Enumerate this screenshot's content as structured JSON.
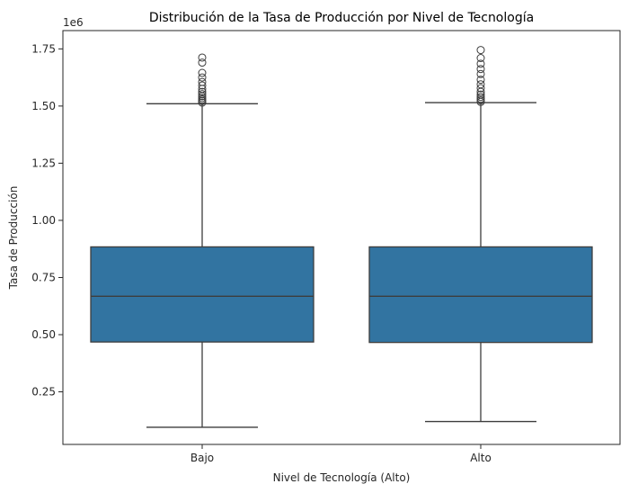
{
  "chart_data": {
    "type": "box",
    "title": "Distribución de la Tasa de Producción por Nivel de Tecnología",
    "xlabel": "Nivel de Tecnología (Alto)",
    "ylabel": "Tasa de Producción",
    "y_multiplier_label": "1e6",
    "categories": [
      "Bajo",
      "Alto"
    ],
    "ylim": [
      0.02,
      1.83
    ],
    "yticks": [
      0.25,
      0.5,
      0.75,
      1.0,
      1.25,
      1.5,
      1.75
    ],
    "ytick_labels": [
      "0.25",
      "0.50",
      "0.75",
      "1.00",
      "1.25",
      "1.50",
      "1.75"
    ],
    "box_color": "#3274a1",
    "line_color": "#3d3d3d",
    "grid": false,
    "boxes": [
      {
        "category": "Bajo",
        "whisker_low": 0.095,
        "q1": 0.468,
        "median": 0.668,
        "q3": 0.884,
        "whisker_high": 1.51,
        "outliers": [
          1.515,
          1.522,
          1.528,
          1.535,
          1.543,
          1.552,
          1.562,
          1.575,
          1.59,
          1.605,
          1.625,
          1.645,
          1.69,
          1.712
        ]
      },
      {
        "category": "Alto",
        "whisker_low": 0.12,
        "q1": 0.466,
        "median": 0.668,
        "q3": 0.884,
        "whisker_high": 1.515,
        "outliers": [
          1.518,
          1.525,
          1.532,
          1.54,
          1.55,
          1.562,
          1.578,
          1.595,
          1.615,
          1.64,
          1.662,
          1.685,
          1.71,
          1.745
        ]
      }
    ]
  }
}
